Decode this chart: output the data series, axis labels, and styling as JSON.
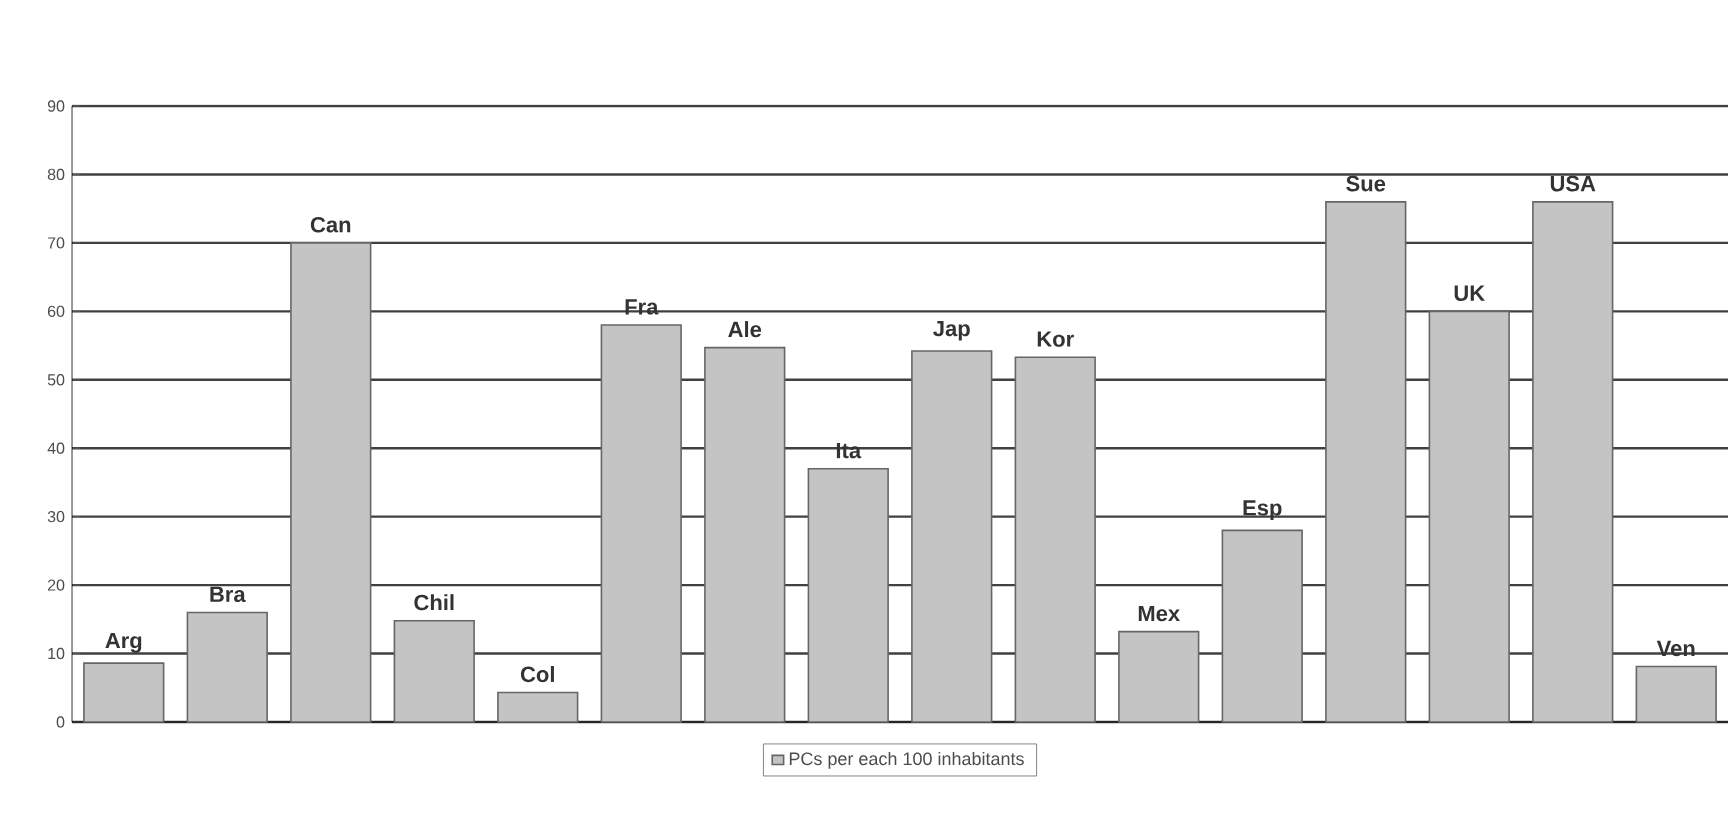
{
  "chart_data": {
    "type": "bar",
    "categories": [
      "Arg",
      "Bra",
      "Can",
      "Chil",
      "Col",
      "Fra",
      "Ale",
      "Ita",
      "Jap",
      "Kor",
      "Mex",
      "Esp",
      "Sue",
      "UK",
      "USA",
      "Ven"
    ],
    "series": [
      {
        "name": "PCs per each 100 inhabitants",
        "color": "#c4c4c4",
        "values": [
          8.6,
          16,
          70,
          14.8,
          4.3,
          58,
          54.7,
          37,
          54.2,
          53.3,
          13.2,
          28,
          76,
          60,
          76,
          8.1
        ]
      }
    ],
    "ylim": [
      0,
      90
    ],
    "yticks": [
      0,
      10,
      20,
      30,
      40,
      50,
      60,
      70,
      80,
      90
    ],
    "grid": "y",
    "legend": "bottom"
  }
}
